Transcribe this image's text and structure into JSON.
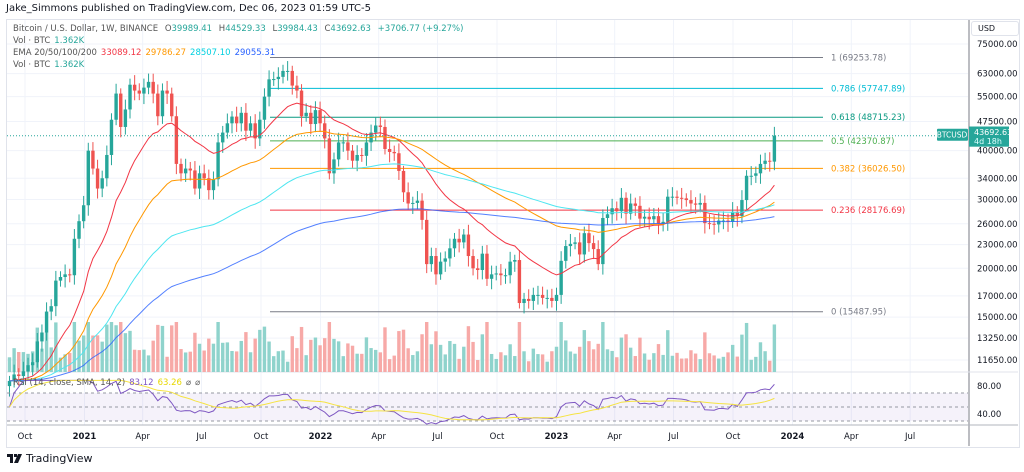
{
  "header": {
    "published": "Jake_Simmons published on TradingView.com, Dec 06, 2023 01:59 UTC-5"
  },
  "legend": {
    "symbol": "Bitcoin / U.S. Dollar, 1W, BINANCE",
    "o_label": "O",
    "o": "39989.41",
    "h_label": "H",
    "h": "44529.33",
    "l_label": "L",
    "l": "39984.43",
    "c_label": "C",
    "c": "43692.63",
    "change": "+3706.77 (+9.27%)",
    "vol_label": "Vol · BTC",
    "vol": "1.362K",
    "ema_label": "EMA 20/50/100/200",
    "ema": [
      "33089.12",
      "29786.27",
      "28507.10",
      "29055.31"
    ],
    "vol2_label": "Vol · BTC",
    "vol2": "1.362K",
    "rsi_label": "RSI (14, close, SMA, 14, 2)",
    "rsi": "83.12",
    "rsi_sma": "63.26"
  },
  "colors": {
    "up": "#26a69a",
    "down": "#ef5350",
    "ema": [
      "#f23645",
      "#ff9800",
      "#4ee6f0",
      "#2962ff"
    ],
    "rsi": "#7e57c2",
    "rsi_sma": "#f5e342"
  },
  "axis": {
    "currency": "USD"
  },
  "price_tag": {
    "symbol": "BTCUSD",
    "price": "43692.63",
    "countdown": "4d 18h"
  },
  "footer": {
    "brand": "TradingView"
  },
  "chart_data": {
    "type": "candlestick",
    "scale": "log",
    "ylim": [
      11000,
      80000
    ],
    "grid": true,
    "start_week": "2020-09-07",
    "end_week": "2023-12-04",
    "closes": [
      10300,
      10700,
      10600,
      10900,
      11300,
      11500,
      13000,
      13700,
      15500,
      16000,
      18600,
      19000,
      19300,
      19200,
      23800,
      26400,
      29000,
      40000,
      36000,
      32000,
      34000,
      39000,
      48000,
      56000,
      46000,
      51000,
      59000,
      57000,
      56000,
      58000,
      60000,
      56000,
      49000,
      57000,
      56000,
      49000,
      37000,
      35000,
      36000,
      35600,
      32000,
      35000,
      34000,
      31700,
      33800,
      42000,
      44500,
      47000,
      48900,
      47000,
      50000,
      45000,
      47000,
      43000,
      48000,
      55000,
      60900,
      61000,
      61800,
      64000,
      64000,
      58700,
      57000,
      49000,
      50000,
      46800,
      50800,
      47000,
      43000,
      35000,
      38000,
      42000,
      42000,
      40000,
      37700,
      39000,
      38800,
      42000,
      44500,
      46400,
      46000,
      40400,
      39700,
      39400,
      35500,
      31300,
      29300,
      29400,
      29800,
      26600,
      20500,
      21500,
      19300,
      20800,
      21200,
      22500,
      23800,
      23300,
      24400,
      21500,
      20000,
      19800,
      21800,
      18800,
      19300,
      19400,
      19200,
      19200,
      20800,
      21000,
      16300,
      16700,
      16500,
      17100,
      17100,
      16800,
      16800,
      16500,
      17100,
      20900,
      22800,
      23100,
      23300,
      21700,
      24600,
      23200,
      22400,
      20500,
      26900,
      27500,
      28500,
      28000,
      30300,
      27600,
      29300,
      28900,
      26800,
      27100,
      26700,
      27200,
      26000,
      26300,
      30500,
      30500,
      30300,
      30200,
      29900,
      29300,
      29100,
      29400,
      26100,
      26000,
      25900,
      26500,
      26500,
      26300,
      27900,
      27200,
      29900,
      34500,
      34500,
      35000,
      37000,
      37700,
      37500,
      43692.63
    ],
    "price_ticks": [
      "75000.00",
      "63000.00",
      "55000.00",
      "47500.00",
      "40000.00",
      "34000.00",
      "30000.00",
      "26000.00",
      "23000.00",
      "20000.00",
      "17000.00",
      "15000.00",
      "13250.00",
      "11650.00"
    ],
    "rsi_ticks": [
      "80.00",
      "40.00"
    ],
    "time_ticks": [
      {
        "label": "Oct",
        "date": "2020-10-01"
      },
      {
        "label": "2021",
        "date": "2021-01-01"
      },
      {
        "label": "Apr",
        "date": "2021-04-01"
      },
      {
        "label": "Jul",
        "date": "2021-07-01"
      },
      {
        "label": "Oct",
        "date": "2021-10-01"
      },
      {
        "label": "2022",
        "date": "2022-01-01"
      },
      {
        "label": "Apr",
        "date": "2022-04-01"
      },
      {
        "label": "Jul",
        "date": "2022-07-01"
      },
      {
        "label": "Oct",
        "date": "2022-10-01"
      },
      {
        "label": "2023",
        "date": "2023-01-01"
      },
      {
        "label": "Apr",
        "date": "2023-04-01"
      },
      {
        "label": "Jul",
        "date": "2023-07-01"
      },
      {
        "label": "Oct",
        "date": "2023-10-01"
      },
      {
        "label": "2024",
        "date": "2024-01-01"
      },
      {
        "label": "Apr",
        "date": "2024-04-01"
      },
      {
        "label": "Jul",
        "date": "2024-07-01"
      }
    ],
    "fib_levels": [
      {
        "ratio": "1",
        "price": 69253.78,
        "label": "1 (69253.78)",
        "color": "#787b86"
      },
      {
        "ratio": "0.786",
        "price": 57747.89,
        "label": "0.786 (57747.89)",
        "color": "#00bcd4"
      },
      {
        "ratio": "0.618",
        "price": 48715.23,
        "label": "0.618 (48715.23)",
        "color": "#089981"
      },
      {
        "ratio": "0.5",
        "price": 42370.87,
        "label": "0.5 (42370.87)",
        "color": "#4caf50"
      },
      {
        "ratio": "0.382",
        "price": 36026.5,
        "label": "0.382 (36026.50)",
        "color": "#ff9800"
      },
      {
        "ratio": "0.236",
        "price": 28176.69,
        "label": "0.236 (28176.69)",
        "color": "#f23645"
      },
      {
        "ratio": "0",
        "price": 15487.95,
        "label": "0 (15487.95)",
        "color": "#787b86"
      }
    ]
  }
}
